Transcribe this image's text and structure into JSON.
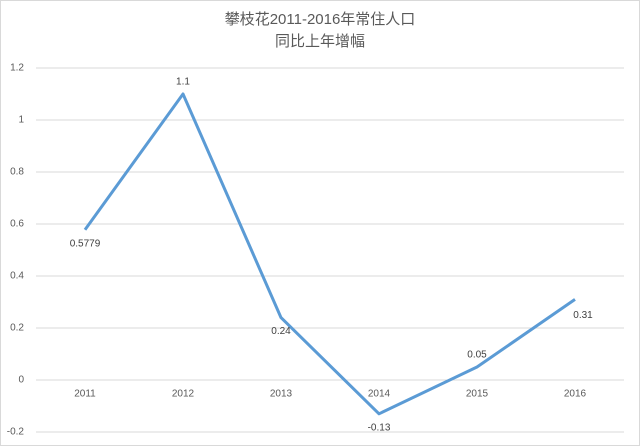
{
  "chart_data": {
    "type": "line",
    "title": [
      "攀枝花2011-2016年常住人口",
      "同比上年增幅"
    ],
    "categories": [
      "2011",
      "2012",
      "2013",
      "2014",
      "2015",
      "2016"
    ],
    "values": [
      0.5779,
      1.1,
      0.24,
      -0.13,
      0.05,
      0.31
    ],
    "color": "#5b9bd5",
    "ylim": [
      -0.2,
      1.2
    ],
    "yticks": [
      -0.2,
      0,
      0.2,
      0.4,
      0.6,
      0.8,
      1,
      1.2
    ],
    "grid": true
  }
}
